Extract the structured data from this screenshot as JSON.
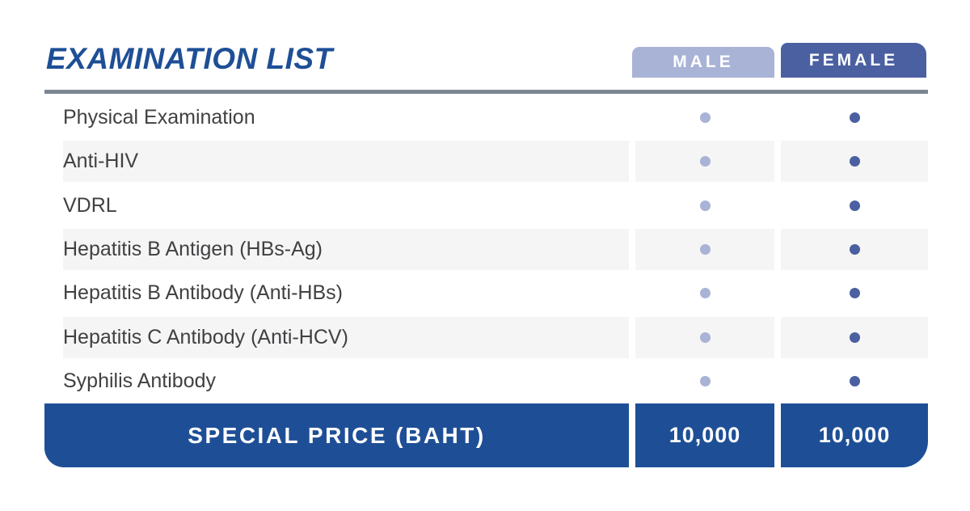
{
  "header": {
    "title": "EXAMINATION LIST",
    "male_label": "MALE",
    "female_label": "FEMALE"
  },
  "rows": [
    {
      "label": "Physical Examination",
      "male": true,
      "female": true
    },
    {
      "label": "Anti-HIV",
      "male": true,
      "female": true
    },
    {
      "label": "VDRL",
      "male": true,
      "female": true
    },
    {
      "label": "Hepatitis B Antigen (HBs-Ag)",
      "male": true,
      "female": true
    },
    {
      "label": "Hepatitis B Antibody (Anti-HBs)",
      "male": true,
      "female": true
    },
    {
      "label": "Hepatitis C Antibody (Anti-HCV)",
      "male": true,
      "female": true
    },
    {
      "label": "Syphilis Antibody",
      "male": true,
      "female": true
    }
  ],
  "footer": {
    "label": "SPECIAL PRICE (BAHT)",
    "male_price": "10,000",
    "female_price": "10,000"
  },
  "colors": {
    "brand_blue": "#1e4f96",
    "female_blue": "#4a60a1",
    "male_periwinkle": "#a9b3d6",
    "divider_slate": "#7b8692",
    "stripe_gray": "#f5f5f6",
    "row_text": "#414042"
  },
  "chart_data": {
    "type": "table",
    "title": "EXAMINATION LIST",
    "columns": [
      "MALE",
      "FEMALE"
    ],
    "rows": [
      {
        "examination": "Physical Examination",
        "male": "included",
        "female": "included"
      },
      {
        "examination": "Anti-HIV",
        "male": "included",
        "female": "included"
      },
      {
        "examination": "VDRL",
        "male": "included",
        "female": "included"
      },
      {
        "examination": "Hepatitis B Antigen (HBs-Ag)",
        "male": "included",
        "female": "included"
      },
      {
        "examination": "Hepatitis B Antibody (Anti-HBs)",
        "male": "included",
        "female": "included"
      },
      {
        "examination": "Hepatitis C Antibody (Anti-HCV)",
        "male": "included",
        "female": "included"
      },
      {
        "examination": "Syphilis Antibody",
        "male": "included",
        "female": "included"
      }
    ],
    "footer_row": {
      "label": "SPECIAL PRICE (BAHT)",
      "male": "10,000",
      "female": "10,000"
    }
  }
}
